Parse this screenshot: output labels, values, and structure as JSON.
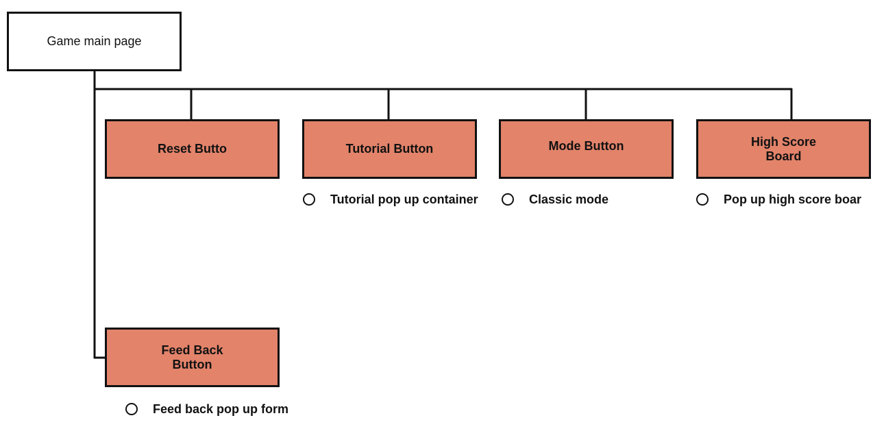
{
  "diagram": {
    "root": {
      "label": "Game main page"
    },
    "nodes": [
      {
        "id": "reset",
        "label": "Reset Butto",
        "sub_items": []
      },
      {
        "id": "tutorial",
        "label": "Tutorial Button",
        "sub_items": [
          "Tutorial pop up container"
        ]
      },
      {
        "id": "mode",
        "label": "Mode Button",
        "sub_items": [
          "Classic mode"
        ]
      },
      {
        "id": "highscore",
        "label": "High  Score\nBoard",
        "sub_items": [
          "Pop up high score boar"
        ]
      },
      {
        "id": "feedback",
        "label": "Feed Back\nButton",
        "sub_items": [
          "Feed back pop up form"
        ]
      }
    ],
    "colors": {
      "node_fill": "#e2836a",
      "root_fill": "#ffffff",
      "line": "#111111"
    }
  }
}
